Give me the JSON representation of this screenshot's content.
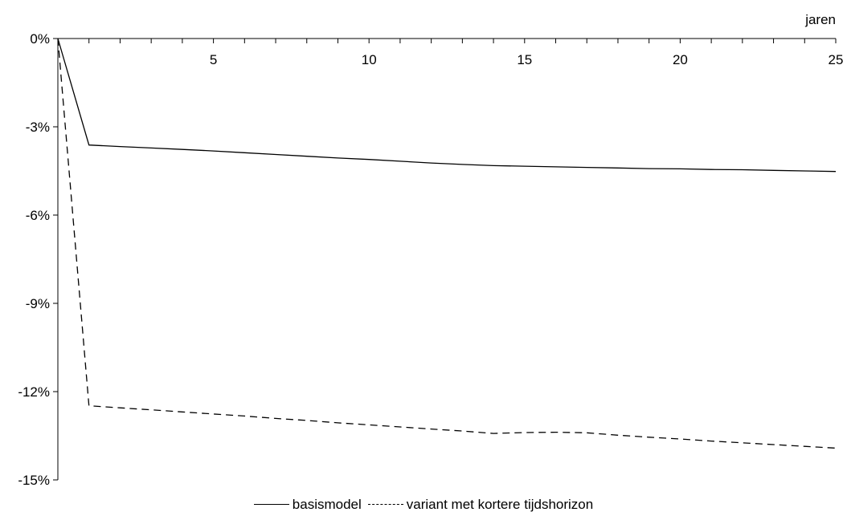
{
  "chart_data": {
    "type": "line",
    "xlabel": "jaren",
    "ylabel": "",
    "x": [
      0,
      1,
      2,
      3,
      4,
      5,
      6,
      7,
      8,
      9,
      10,
      11,
      12,
      13,
      14,
      15,
      16,
      17,
      18,
      19,
      20,
      21,
      22,
      23,
      24,
      25
    ],
    "xlim": [
      0,
      25
    ],
    "ylim": [
      -15,
      0
    ],
    "x_tick_labels": [
      "5",
      "10",
      "15",
      "20",
      "25"
    ],
    "x_tick_values": [
      5,
      10,
      15,
      20,
      25
    ],
    "y_tick_values": [
      0,
      -3,
      -6,
      -9,
      -12,
      -15
    ],
    "y_tick_labels": [
      "0%",
      "-3%",
      "-6%",
      "-9%",
      "-12%",
      "-15%"
    ],
    "grid": false,
    "legend_position": "bottom",
    "series": [
      {
        "name": "basismodel",
        "style": "solid",
        "color": "#000000",
        "values": [
          0,
          -3.62,
          -3.67,
          -3.72,
          -3.77,
          -3.82,
          -3.88,
          -3.94,
          -4.0,
          -4.06,
          -4.11,
          -4.17,
          -4.23,
          -4.28,
          -4.32,
          -4.34,
          -4.36,
          -4.38,
          -4.4,
          -4.42,
          -4.43,
          -4.45,
          -4.46,
          -4.48,
          -4.5,
          -4.52
        ]
      },
      {
        "name": "variant met kortere tijdshorizon",
        "style": "dashed",
        "color": "#000000",
        "values": [
          0,
          -12.48,
          -12.55,
          -12.62,
          -12.69,
          -12.76,
          -12.83,
          -12.91,
          -12.98,
          -13.06,
          -13.13,
          -13.2,
          -13.27,
          -13.34,
          -13.42,
          -13.39,
          -13.38,
          -13.4,
          -13.48,
          -13.55,
          -13.61,
          -13.68,
          -13.74,
          -13.8,
          -13.86,
          -13.92
        ]
      }
    ]
  }
}
